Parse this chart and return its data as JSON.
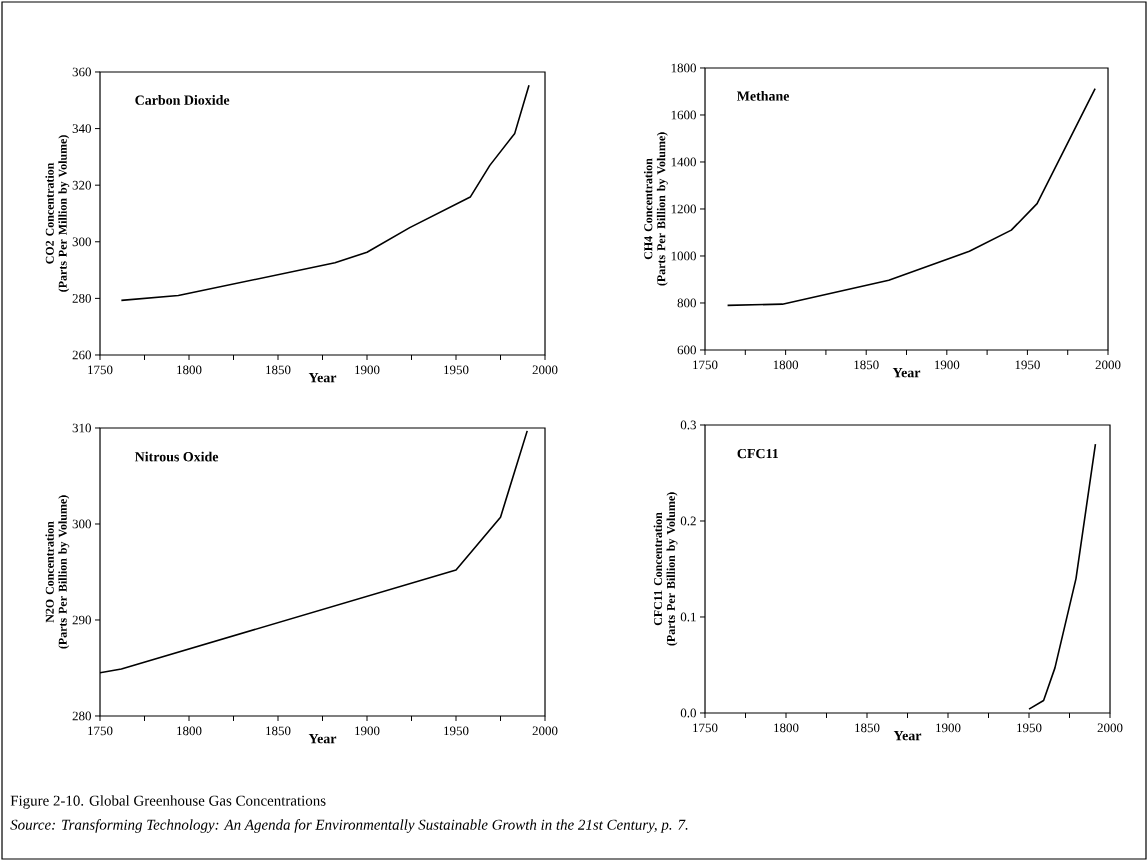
{
  "chart_data": [
    {
      "type": "line",
      "title": "Carbon Dioxide",
      "xlabel": "Year",
      "ylabel": "CO2 Concentration\n(Parts Per Million by Volume)",
      "x": [
        1762,
        1794,
        1882,
        1900,
        1924,
        1958,
        1969,
        1983,
        1991
      ],
      "values": [
        279.3,
        281,
        292.6,
        296.3,
        305,
        315.8,
        327,
        338.3,
        355.3
      ],
      "color": "#000000",
      "xlim": [
        1750,
        2000
      ],
      "xticks": [
        1750,
        {
          "value": 1775,
          "label": null
        },
        1800,
        {
          "value": 1825,
          "label": null
        },
        1850,
        {
          "value": 1875,
          "label": null
        },
        1900,
        {
          "value": 1925,
          "label": null
        },
        1950,
        {
          "value": 1975,
          "label": null
        },
        2000
      ],
      "ylim": [
        260,
        360
      ],
      "yticks": [
        260,
        280,
        300,
        320,
        340,
        360
      ]
    },
    {
      "type": "line",
      "title": "Methane",
      "xlabel": "Year",
      "ylabel": "CH4 Concentration\n(Parts Per Billion by Volume)",
      "x": [
        1764,
        1798,
        1864,
        1914,
        1940,
        1956,
        1992
      ],
      "values": [
        790,
        795,
        897,
        1020,
        1110,
        1223,
        1712
      ],
      "color": "#000000",
      "xlim": [
        1750,
        2000
      ],
      "xticks": [
        1750,
        {
          "value": 1775,
          "label": null
        },
        1800,
        {
          "value": 1825,
          "label": null
        },
        1850,
        {
          "value": 1875,
          "label": null
        },
        1900,
        {
          "value": 1925,
          "label": null
        },
        1950,
        {
          "value": 1975,
          "label": null
        },
        2000
      ],
      "ylim": [
        600,
        1800
      ],
      "yticks": [
        600,
        800,
        1000,
        1200,
        1400,
        1600,
        1800
      ]
    },
    {
      "type": "line",
      "title": "Nitrous Oxide",
      "xlabel": "Year",
      "ylabel": "N2O Concentration\n(Parts Per Billion by Volume)",
      "x": [
        1750,
        1762,
        1950,
        1975,
        1990
      ],
      "values": [
        284.5,
        284.9,
        295.2,
        300.7,
        309.7
      ],
      "color": "#000000",
      "xlim": [
        1750,
        2000
      ],
      "xticks": [
        1750,
        {
          "value": 1775,
          "label": null
        },
        1800,
        {
          "value": 1825,
          "label": null
        },
        1850,
        {
          "value": 1875,
          "label": null
        },
        1900,
        {
          "value": 1925,
          "label": null
        },
        1950,
        {
          "value": 1975,
          "label": null
        },
        2000
      ],
      "ylim": [
        280,
        310
      ],
      "yticks": [
        280,
        290,
        300,
        310
      ]
    },
    {
      "type": "line",
      "title": "CFC11",
      "xlabel": "Year",
      "ylabel": "CFC11 Concentration\n(Parts Per Billion by Volume)",
      "x": [
        1950,
        1959,
        1966,
        1979,
        1991
      ],
      "values": [
        0.004,
        0.013,
        0.047,
        0.14,
        0.28
      ],
      "color": "#000000",
      "xlim": [
        1750,
        2000
      ],
      "xticks": [
        1750,
        {
          "value": 1775,
          "label": null
        },
        1800,
        {
          "value": 1825,
          "label": null
        },
        1850,
        {
          "value": 1875,
          "label": null
        },
        1900,
        {
          "value": 1925,
          "label": null
        },
        1950,
        {
          "value": 1975,
          "label": null
        },
        2000
      ],
      "ylim": [
        0,
        0.3
      ],
      "yticks": [
        {
          "value": 0,
          "label": "0.0"
        },
        0.1,
        0.2,
        0.3
      ],
      "annotations": [
        "Figure 2-10. Global Greenhouse Gas Concentrations",
        "Source: Transforming Technology: An Agenda for Environmentally Sustainable Growth in the 21st Century, p. 7."
      ]
    }
  ]
}
